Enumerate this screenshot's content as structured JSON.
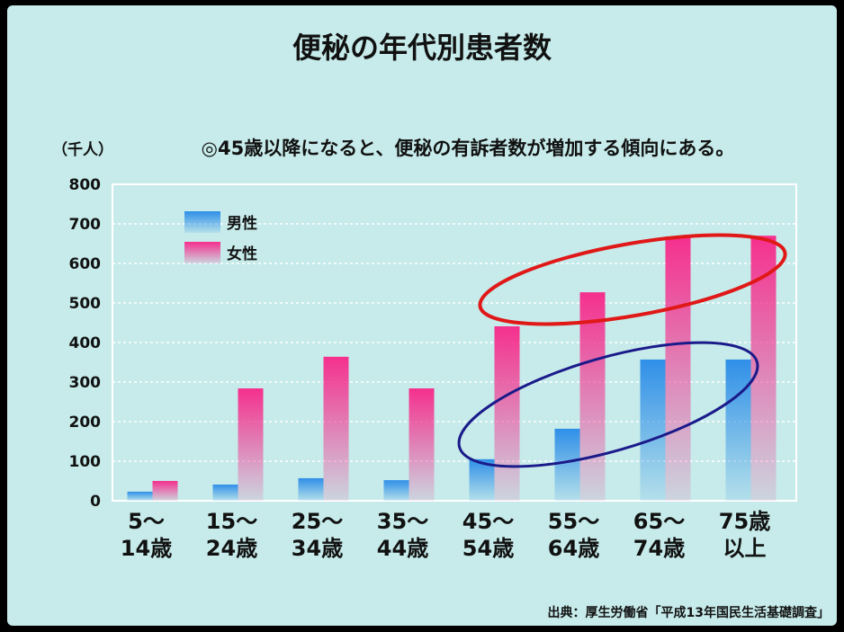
{
  "chart_data": {
    "type": "bar",
    "title": "便秘の年代別患者数",
    "subtitle": "◎45歳以降になると、便秘の有訴者数が増加する傾向にある。",
    "y_label": "（千人）",
    "source": "出典：厚生労働省「平成13年国民生活基礎調査」",
    "categories": [
      [
        "5～",
        "14歳"
      ],
      [
        "15～",
        "24歳"
      ],
      [
        "25～",
        "34歳"
      ],
      [
        "35～",
        "44歳"
      ],
      [
        "45～",
        "54歳"
      ],
      [
        "55～",
        "64歳"
      ],
      [
        "65～",
        "74歳"
      ],
      [
        "75歳",
        "以上"
      ]
    ],
    "series": [
      {
        "name": "男性",
        "color": "#2f8fe8",
        "values": [
          23,
          41,
          57,
          52,
          105,
          182,
          357,
          357
        ]
      },
      {
        "name": "女性",
        "color": "#f5308e",
        "values": [
          50,
          284,
          364,
          284,
          441,
          527,
          668,
          670
        ]
      }
    ],
    "ylim": [
      0,
      800
    ],
    "yticks": [
      0,
      100,
      200,
      300,
      400,
      500,
      600,
      700,
      800
    ],
    "grid": true
  }
}
